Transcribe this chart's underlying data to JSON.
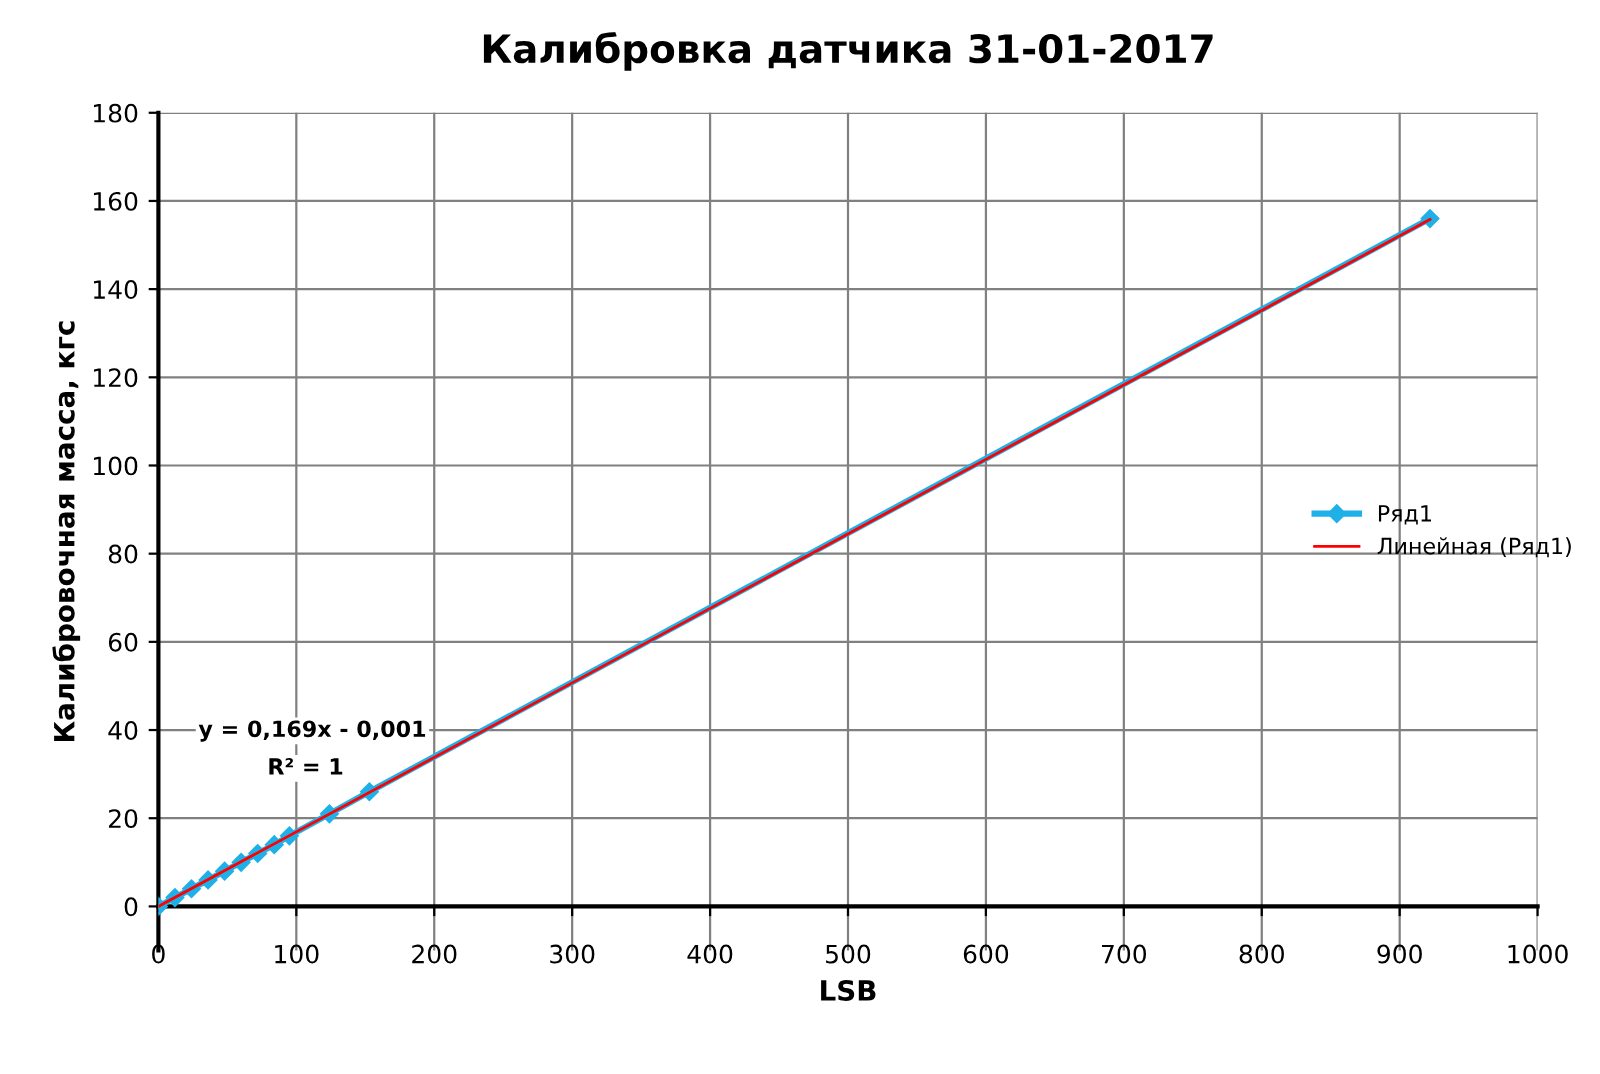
{
  "chart_data": {
    "type": "line",
    "title": "Калибровка датчика 31-01-2017",
    "xlabel": "LSB",
    "ylabel": "Калибровочная масса, кгс",
    "series": [
      {
        "name": "Ряд1",
        "color": "#1fb0e8",
        "marker": "diamond",
        "x": [
          0,
          12,
          24,
          36,
          48,
          60,
          72,
          84,
          95,
          124,
          153,
          922
        ],
        "values": [
          0,
          2,
          4,
          6,
          8,
          10,
          12,
          14,
          16,
          21,
          26,
          156
        ]
      },
      {
        "name": "Линейная (Ряд1)",
        "color": "#ff0000",
        "marker": "none",
        "x": [
          0,
          922
        ],
        "values": [
          0,
          155.8
        ]
      }
    ],
    "xlim": [
      0,
      1000
    ],
    "xticks": [
      0,
      100,
      200,
      300,
      400,
      500,
      600,
      700,
      800,
      900,
      1000
    ],
    "ylim": [
      -10,
      180
    ],
    "yticks": [
      0,
      20,
      40,
      60,
      80,
      100,
      120,
      140,
      160,
      180
    ],
    "grid": true,
    "legend": "right",
    "annotations": [
      "y = 0,169x - 0,001",
      "R² = 1"
    ]
  }
}
